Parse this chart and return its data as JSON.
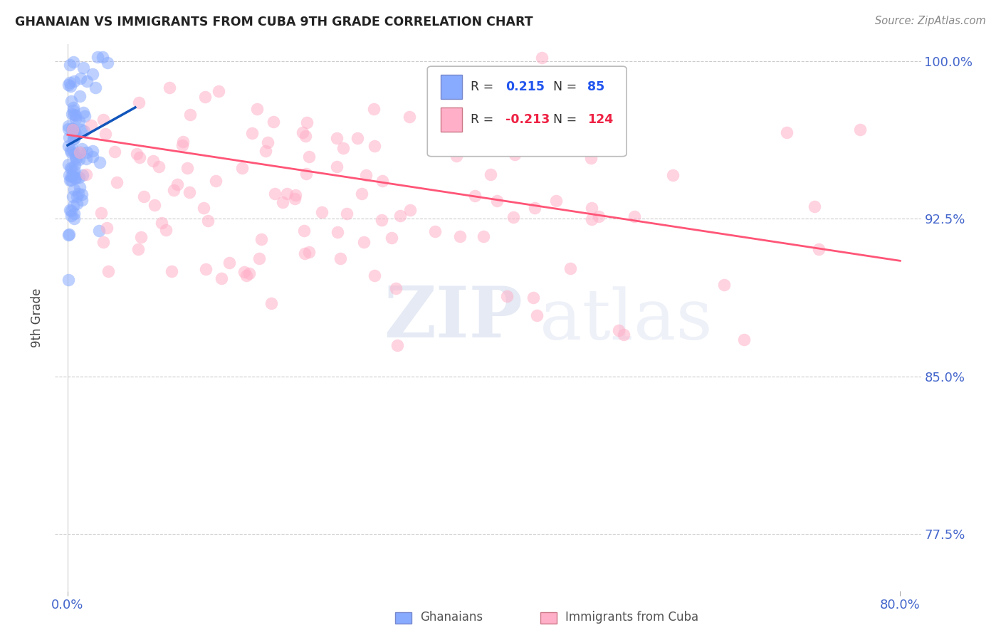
{
  "title": "GHANAIAN VS IMMIGRANTS FROM CUBA 9TH GRADE CORRELATION CHART",
  "source": "Source: ZipAtlas.com",
  "ylabel": "9th Grade",
  "ytick_vals": [
    0.775,
    0.85,
    0.925,
    1.0
  ],
  "ytick_labels": [
    "77.5%",
    "85.0%",
    "92.5%",
    "100.0%"
  ],
  "xtick_vals": [
    0.0,
    0.8
  ],
  "xtick_labels": [
    "0.0%",
    "80.0%"
  ],
  "legend_r_blue": "0.215",
  "legend_n_blue": "85",
  "legend_r_pink": "-0.213",
  "legend_n_pink": "124",
  "blue_scatter_color": "#88AAFF",
  "pink_scatter_color": "#FFB0C8",
  "blue_line_color": "#1155BB",
  "pink_line_color": "#FF5577",
  "tick_label_color": "#4466CC",
  "legend_label_blue": "Ghanaians",
  "legend_label_pink": "Immigrants from Cuba",
  "blue_n": 85,
  "pink_n": 124,
  "xlim_min": -0.012,
  "xlim_max": 0.82,
  "ylim_min": 0.748,
  "ylim_max": 1.008,
  "blue_line_x0": 0.0,
  "blue_line_x1": 0.065,
  "blue_line_y0": 0.96,
  "blue_line_y1": 0.978,
  "pink_line_x0": 0.0,
  "pink_line_x1": 0.8,
  "pink_line_y0": 0.965,
  "pink_line_y1": 0.905
}
